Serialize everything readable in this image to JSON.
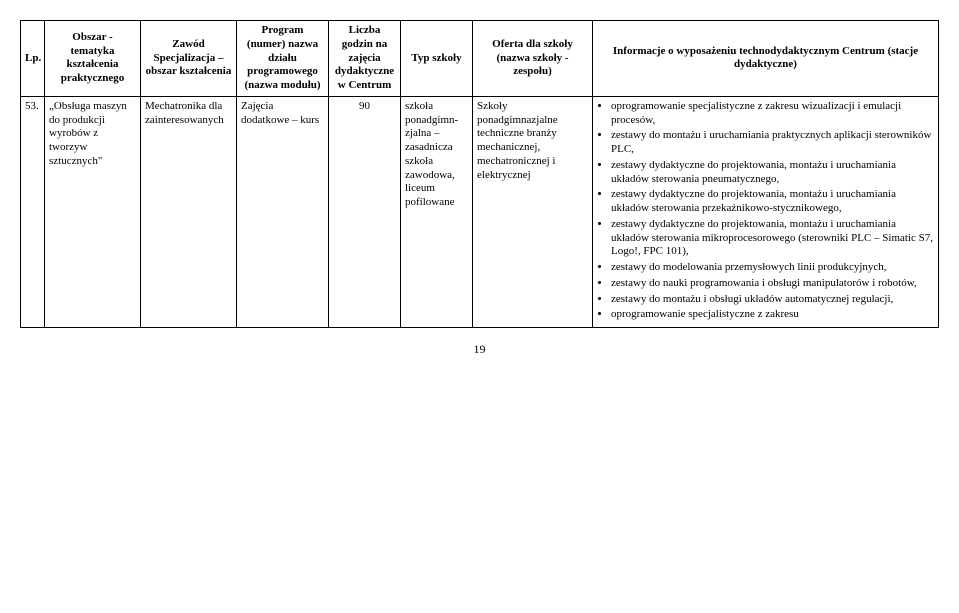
{
  "headers": {
    "lp": "Lp.",
    "obszar": "Obszar - tematyka kształcenia praktycznego",
    "zawod": "Zawód Specjalizacja – obszar kształcenia",
    "program": "Program (numer) nazwa działu programowego (nazwa modułu)",
    "liczba": "Liczba godzin na zajęcia dydaktyczne w Centrum",
    "typ": "Typ szkoły",
    "oferta": "Oferta dla szkoły (nazwa szkoły - zespołu)",
    "informacje": "Informacje o wyposażeniu technodydaktycznym Centrum (stacje dydaktyczne)"
  },
  "row": {
    "lp": "53.",
    "obszar": "„Obsługa maszyn do produkcji wyrobów z tworzyw sztucznych\"",
    "zawod": "Mechatronika dla zainteresowanych",
    "program": "Zajęcia dodatkowe – kurs",
    "liczba": "90",
    "typ": "szkoła ponadgimn-zjalna – zasadnicza szkoła zawodowa, liceum pofilowane",
    "oferta": "Szkoły ponadgimnazjalne techniczne branży mechanicznej, mechatronicznej i elektrycznej",
    "info_items": [
      "oprogramowanie specjalistyczne z zakresu wizualizacji i emulacji procesów,",
      "zestawy do montażu i uruchamiania praktycznych aplikacji sterowników PLC,",
      "zestawy dydaktyczne do projektowania, montażu i uruchamiania układów sterowania pneumatycznego,",
      "zestawy dydaktyczne do projektowania, montażu i uruchamiania układów sterowania przekaźnikowo-stycznikowego,",
      "zestawy dydaktyczne do projektowania, montażu i uruchamiania układów sterowania mikroprocesorowego (sterowniki PLC – Simatic S7, Logo!, FPC 101),",
      "zestawy do modelowania przemysłowych linii produkcyjnych,",
      "zestawy do nauki programowania i obsługi manipulatorów i robotów,",
      "zestawy do montażu i obsługi układów automatycznej regulacji,",
      "oprogramowanie specjalistyczne z zakresu"
    ]
  },
  "page_number": "19"
}
